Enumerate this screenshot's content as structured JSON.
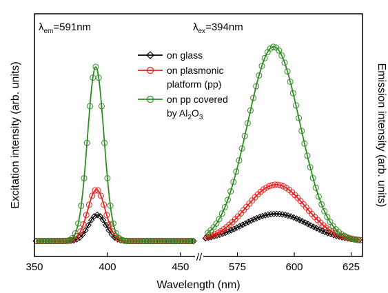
{
  "chart_data": {
    "type": "line",
    "ylabel_left": "Excitation intensity (arb. units)",
    "ylabel_right": "Emission intensity (arb. units)",
    "xlabel": "Wavelength (nm)",
    "annotations": {
      "left": {
        "symbol": "λ",
        "sub": "em",
        "text": "=591nm"
      },
      "right": {
        "symbol": "λ",
        "sub": "ex",
        "text": "=394nm"
      }
    },
    "axis_break": "//",
    "panels": [
      {
        "name": "excitation",
        "xlim": [
          350,
          460
        ],
        "ticks": [
          350,
          400,
          450
        ],
        "tick_labels": [
          "350",
          "400",
          "450"
        ]
      },
      {
        "name": "emission",
        "xlim": [
          560,
          630
        ],
        "ticks": [
          575,
          600,
          625
        ],
        "tick_labels": [
          "575",
          "600",
          "625"
        ]
      }
    ],
    "ylim": [
      0,
      1
    ],
    "legend": {
      "placement": "top-center",
      "entries": [
        {
          "lines": [
            "on glass"
          ],
          "color": "#000000",
          "marker": "diamond"
        },
        {
          "lines": [
            "on plasmonic",
            "platform (pp)"
          ],
          "color": "#e8201b",
          "marker": "circle"
        },
        {
          "lines": [
            "on pp covered",
            "by Al",
            "2",
            "O",
            "3"
          ],
          "color": "#2e8b22",
          "marker": "circle"
        }
      ]
    },
    "series": [
      {
        "name": "on glass",
        "color": "#000000",
        "marker": "diamond",
        "excitation": {
          "center": 393,
          "width": 6,
          "peak": 0.13,
          "baseline": 0.015
        },
        "emission": {
          "center": 592,
          "width": 14.5,
          "peak": 0.135,
          "baseline": 0.015
        }
      },
      {
        "name": "on plasmonic platform (pp)",
        "color": "#e8201b",
        "marker": "circle",
        "excitation": {
          "center": 392.5,
          "width": 6,
          "peak": 0.255,
          "baseline": 0.015
        },
        "emission": {
          "center": 592,
          "width": 13,
          "peak": 0.28,
          "baseline": 0.015
        }
      },
      {
        "name": "on pp covered by Al2O3",
        "color": "#2e8b22",
        "marker": "circle",
        "excitation": {
          "center": 392,
          "width": 5.6,
          "peak": 0.865,
          "baseline": 0.015
        },
        "emission": {
          "center": 591,
          "width": 11.5,
          "peak": 0.965,
          "baseline": 0.015
        }
      }
    ]
  }
}
